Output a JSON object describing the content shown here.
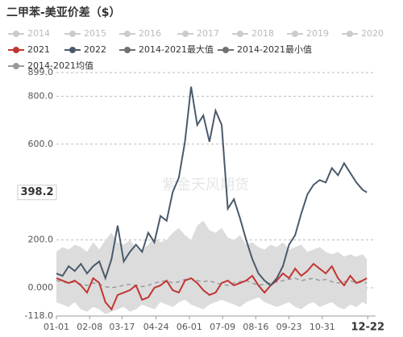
{
  "chart_data": {
    "type": "line",
    "title": "二甲苯-美亚价差（$）",
    "watermark": "紫金天风期货",
    "current_label": {
      "value": 398.2,
      "label": "398.2"
    },
    "band_color": "#dcdcdc",
    "xlim": [
      0,
      365
    ],
    "x": [
      0,
      7,
      14,
      21,
      28,
      35,
      42,
      49,
      56,
      63,
      70,
      77,
      84,
      91,
      98,
      105,
      112,
      119,
      126,
      133,
      140,
      147,
      154,
      161,
      168,
      175,
      182,
      189,
      196,
      203,
      210,
      217,
      224,
      231,
      238,
      245,
      252,
      259,
      266,
      273,
      280,
      287,
      294,
      301,
      308,
      315,
      322,
      329,
      336,
      343,
      350,
      355
    ],
    "xticks": [
      {
        "value": 0,
        "label": "01-01"
      },
      {
        "value": 38,
        "label": "02-08"
      },
      {
        "value": 75,
        "label": "03-17"
      },
      {
        "value": 114,
        "label": "04-24"
      },
      {
        "value": 152,
        "label": "06-01"
      },
      {
        "value": 190,
        "label": "07-09"
      },
      {
        "value": 228,
        "label": "08-16"
      },
      {
        "value": 266,
        "label": "09-23"
      },
      {
        "value": 304,
        "label": "10-31"
      },
      {
        "value": 356,
        "label": "12-22"
      }
    ],
    "ylim": [
      -118,
      899
    ],
    "yticks": [
      {
        "value": 899,
        "label": "899.0"
      },
      {
        "value": 800,
        "label": "800.0"
      },
      {
        "value": 600,
        "label": "600.0"
      },
      {
        "value": 200,
        "label": "200.0"
      },
      {
        "value": 0,
        "label": "0.000"
      },
      {
        "value": -118,
        "label": "-118.0"
      }
    ],
    "grid": true,
    "series": [
      {
        "name": "2014",
        "color": "#cccccc",
        "hidden": true
      },
      {
        "name": "2015",
        "color": "#cccccc",
        "hidden": true
      },
      {
        "name": "2016",
        "color": "#cccccc",
        "hidden": true
      },
      {
        "name": "2017",
        "color": "#cccccc",
        "hidden": true
      },
      {
        "name": "2018",
        "color": "#cccccc",
        "hidden": true
      },
      {
        "name": "2019",
        "color": "#cccccc",
        "hidden": true
      },
      {
        "name": "2020",
        "color": "#cccccc",
        "hidden": true
      },
      {
        "name": "2014-2021最大值",
        "color": "#6e7074",
        "band": "upper",
        "values": [
          150,
          170,
          160,
          180,
          170,
          150,
          190,
          160,
          200,
          230,
          190,
          180,
          200,
          170,
          160,
          180,
          210,
          190,
          200,
          230,
          250,
          220,
          200,
          260,
          280,
          240,
          230,
          250,
          210,
          200,
          220,
          180,
          190,
          170,
          160,
          180,
          170,
          190,
          160,
          170,
          180,
          150,
          160,
          170,
          150,
          140,
          150,
          130,
          140,
          130,
          140,
          120
        ]
      },
      {
        "name": "2014-2021最小值",
        "color": "#6e7074",
        "band": "lower",
        "values": [
          -60,
          -70,
          -80,
          -60,
          -90,
          -100,
          -80,
          -90,
          -110,
          -100,
          -90,
          -80,
          -100,
          -90,
          -70,
          -80,
          -90,
          -60,
          -70,
          -80,
          -60,
          -50,
          -70,
          -80,
          -90,
          -70,
          -60,
          -50,
          -60,
          -70,
          -80,
          -60,
          -50,
          -40,
          -60,
          -70,
          -80,
          -70,
          -60,
          -80,
          -90,
          -70,
          -60,
          -80,
          -70,
          -60,
          -80,
          -90,
          -70,
          -80,
          -60,
          -70
        ]
      },
      {
        "name": "2014-2021均值",
        "color": "#9a9a9a",
        "dashed": true,
        "values": [
          30,
          25,
          20,
          25,
          15,
          10,
          20,
          15,
          5,
          0,
          5,
          10,
          15,
          10,
          5,
          10,
          20,
          25,
          30,
          20,
          25,
          35,
          40,
          30,
          25,
          30,
          20,
          15,
          10,
          20,
          25,
          30,
          20,
          10,
          15,
          20,
          25,
          30,
          35,
          40,
          30,
          35,
          40,
          30,
          35,
          25,
          20,
          25,
          30,
          20,
          25,
          20
        ]
      },
      {
        "name": "2021",
        "color": "#c23531",
        "values": [
          40,
          30,
          20,
          30,
          10,
          -20,
          40,
          20,
          -60,
          -90,
          -30,
          -20,
          -10,
          10,
          -50,
          -40,
          0,
          10,
          30,
          -10,
          -20,
          30,
          40,
          20,
          -10,
          -30,
          -20,
          20,
          30,
          10,
          20,
          30,
          50,
          10,
          -20,
          10,
          30,
          60,
          40,
          80,
          50,
          70,
          100,
          80,
          60,
          90,
          40,
          10,
          50,
          20,
          30,
          40
        ]
      },
      {
        "name": "2022",
        "color": "#4a5a6a",
        "values": [
          60,
          50,
          90,
          70,
          100,
          60,
          90,
          110,
          40,
          120,
          260,
          110,
          150,
          180,
          150,
          230,
          190,
          300,
          280,
          400,
          460,
          610,
          840,
          680,
          720,
          610,
          740,
          680,
          330,
          370,
          290,
          200,
          120,
          60,
          30,
          10,
          40,
          90,
          180,
          220,
          310,
          390,
          430,
          450,
          440,
          500,
          470,
          520,
          480,
          440,
          410,
          398.2
        ]
      }
    ]
  }
}
